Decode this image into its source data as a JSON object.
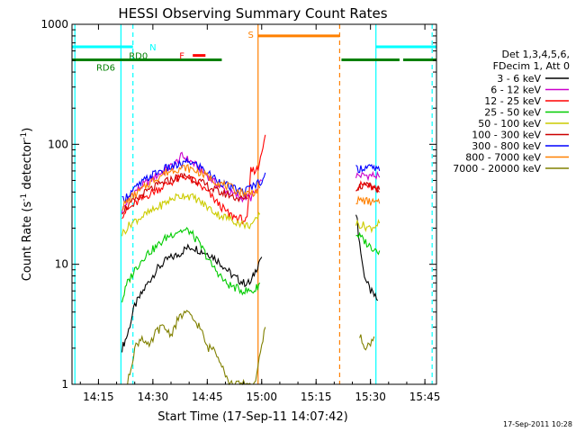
{
  "chart_data": {
    "type": "line",
    "title": "HESSI Observing Summary Count Rates",
    "xlabel": "Start Time (17-Sep-11 14:07:42)",
    "ylabel": "Count Rate (s⁻¹ detector⁻¹)",
    "ylabel_main": "Count Rate (s",
    "ylabel_sup1": "-1",
    "ylabel_mid": " detector",
    "ylabel_sup2": "-1",
    "ylabel_end": ")",
    "y_scale": "log",
    "ylim": [
      1,
      1000
    ],
    "xlim_minutes": [
      7.7,
      108.2
    ],
    "x_ticks": [
      {
        "label": "14:15",
        "min": 15
      },
      {
        "label": "14:30",
        "min": 30
      },
      {
        "label": "14:45",
        "min": 45
      },
      {
        "label": "15:00",
        "min": 60
      },
      {
        "label": "15:15",
        "min": 75
      },
      {
        "label": "15:30",
        "min": 90
      },
      {
        "label": "15:45",
        "min": 105
      }
    ],
    "y_ticks": [
      {
        "label": "1",
        "v": 1
      },
      {
        "label": "10",
        "v": 10
      },
      {
        "label": "100",
        "v": 100
      },
      {
        "label": "1000",
        "v": 1000
      }
    ],
    "legend_header": [
      "Det 1,3,4,5,6,",
      "FDecim 1, Att 0"
    ],
    "legend_position": "right",
    "series": [
      {
        "name": "3 - 6 keV",
        "color": "#000000",
        "points": [
          [
            21.5,
            2
          ],
          [
            23,
            2.6
          ],
          [
            25,
            4.5
          ],
          [
            28,
            6.5
          ],
          [
            31,
            9
          ],
          [
            34,
            11
          ],
          [
            37,
            12
          ],
          [
            39,
            13.5
          ],
          [
            41,
            14
          ],
          [
            43,
            13
          ],
          [
            46,
            12
          ],
          [
            49,
            10
          ],
          [
            52,
            8
          ],
          [
            55,
            7
          ],
          [
            57,
            7
          ],
          [
            59.5,
            11
          ],
          [
            60,
            11.5
          ]
        ],
        "points2": [
          [
            86,
            28
          ],
          [
            87,
            15
          ],
          [
            88,
            9
          ],
          [
            89,
            7
          ],
          [
            90,
            6
          ],
          [
            92,
            5
          ]
        ]
      },
      {
        "name": "6 - 12 keV",
        "color": "#cc00cc",
        "points": [
          [
            21.5,
            28
          ],
          [
            24,
            38
          ],
          [
            27,
            45
          ],
          [
            30,
            52
          ],
          [
            33,
            60
          ],
          [
            36,
            68
          ],
          [
            38,
            80
          ],
          [
            39.5,
            75
          ],
          [
            41,
            70
          ],
          [
            43,
            62
          ],
          [
            45,
            55
          ],
          [
            48,
            45
          ],
          [
            51,
            40
          ],
          [
            54,
            36
          ],
          [
            57,
            36
          ],
          [
            59,
            42
          ],
          [
            60,
            50
          ]
        ],
        "points2": [
          [
            86,
            55
          ],
          [
            88,
            55
          ],
          [
            91,
            55
          ],
          [
            92.5,
            53
          ]
        ]
      },
      {
        "name": "12 - 25 keV",
        "color": "#ff0000",
        "points": [
          [
            21.5,
            26
          ],
          [
            24,
            30
          ],
          [
            27,
            35
          ],
          [
            30,
            40
          ],
          [
            33,
            45
          ],
          [
            36,
            50
          ],
          [
            39,
            54
          ],
          [
            42,
            48
          ],
          [
            45,
            40
          ],
          [
            48,
            32
          ],
          [
            51,
            26
          ],
          [
            54,
            24
          ],
          [
            56,
            23
          ],
          [
            57,
            60
          ],
          [
            59,
            62
          ],
          [
            60,
            90
          ],
          [
            61,
            120
          ]
        ],
        "points2": [
          [
            86,
            44
          ],
          [
            88,
            46
          ],
          [
            90,
            44
          ],
          [
            92.5,
            40
          ]
        ]
      },
      {
        "name": "25 - 50 keV",
        "color": "#00cc00",
        "points": [
          [
            21.5,
            5
          ],
          [
            23,
            7
          ],
          [
            25,
            9
          ],
          [
            28,
            12
          ],
          [
            31,
            14
          ],
          [
            34,
            17
          ],
          [
            37,
            19
          ],
          [
            40,
            19
          ],
          [
            42,
            16
          ],
          [
            44,
            13
          ],
          [
            46,
            10
          ],
          [
            48,
            8.5
          ],
          [
            50,
            7
          ],
          [
            52,
            6.5
          ],
          [
            55,
            6
          ],
          [
            58,
            6
          ],
          [
            59.5,
            7
          ]
        ],
        "points2": [
          [
            86,
            18
          ],
          [
            88,
            16
          ],
          [
            90,
            14
          ],
          [
            92.5,
            13
          ]
        ]
      },
      {
        "name": "50 - 100 keV",
        "color": "#cccc00",
        "points": [
          [
            21.5,
            18
          ],
          [
            24,
            22
          ],
          [
            27,
            25
          ],
          [
            30,
            28
          ],
          [
            33,
            32
          ],
          [
            36,
            36
          ],
          [
            39,
            38
          ],
          [
            42,
            35
          ],
          [
            45,
            30
          ],
          [
            48,
            26
          ],
          [
            51,
            24
          ],
          [
            54,
            22
          ],
          [
            56,
            21
          ],
          [
            58,
            22
          ],
          [
            59.5,
            26
          ]
        ],
        "points2": [
          [
            86,
            22
          ],
          [
            88,
            21
          ],
          [
            90,
            20
          ],
          [
            92.5,
            22
          ]
        ]
      },
      {
        "name": "100 - 300 keV",
        "color": "#cc0000",
        "points": [
          [
            21.5,
            28
          ],
          [
            24,
            32
          ],
          [
            27,
            38
          ],
          [
            30,
            43
          ],
          [
            33,
            48
          ],
          [
            36,
            52
          ],
          [
            39,
            55
          ],
          [
            42,
            50
          ],
          [
            45,
            45
          ],
          [
            48,
            40
          ],
          [
            51,
            38
          ],
          [
            54,
            35
          ],
          [
            56,
            35
          ]
        ],
        "points2": [
          [
            86,
            44
          ],
          [
            88,
            45
          ],
          [
            90,
            44
          ],
          [
            92.5,
            42
          ]
        ]
      },
      {
        "name": "300 - 800 keV",
        "color": "#0000ff",
        "points": [
          [
            21.5,
            34
          ],
          [
            24,
            40
          ],
          [
            27,
            48
          ],
          [
            30,
            56
          ],
          [
            33,
            62
          ],
          [
            36,
            66
          ],
          [
            38,
            68
          ],
          [
            40,
            72
          ],
          [
            43,
            65
          ],
          [
            46,
            55
          ],
          [
            49,
            48
          ],
          [
            52,
            43
          ],
          [
            55,
            40
          ],
          [
            57,
            44
          ],
          [
            59,
            48
          ],
          [
            60,
            50
          ],
          [
            61,
            58
          ]
        ],
        "points2": [
          [
            86,
            62
          ],
          [
            88,
            64
          ],
          [
            90,
            64
          ],
          [
            92.5,
            60
          ]
        ]
      },
      {
        "name": "800 - 7000 keV",
        "color": "#ff8000",
        "points": [
          [
            21.5,
            30
          ],
          [
            24,
            36
          ],
          [
            27,
            42
          ],
          [
            30,
            50
          ],
          [
            33,
            57
          ],
          [
            36,
            62
          ],
          [
            39,
            64
          ],
          [
            42,
            60
          ],
          [
            45,
            54
          ],
          [
            48,
            48
          ],
          [
            51,
            44
          ],
          [
            54,
            40
          ],
          [
            56,
            39
          ],
          [
            58,
            40
          ],
          [
            59.5,
            43
          ]
        ],
        "points2": [
          [
            86,
            34
          ],
          [
            88,
            34
          ],
          [
            90,
            33
          ],
          [
            92.5,
            32
          ]
        ]
      },
      {
        "name": "7000 - 20000 keV",
        "color": "#808000",
        "points": [
          [
            23,
            1
          ],
          [
            25,
            2
          ],
          [
            27,
            2.5
          ],
          [
            29,
            2
          ],
          [
            31,
            2.8
          ],
          [
            33,
            3
          ],
          [
            35,
            2.6
          ],
          [
            37,
            3.5
          ],
          [
            39,
            4
          ],
          [
            41,
            3.5
          ],
          [
            43,
            3
          ],
          [
            45,
            2
          ],
          [
            47,
            2
          ],
          [
            49,
            1.5
          ],
          [
            51,
            1
          ],
          [
            56,
            1
          ],
          [
            58,
            1
          ],
          [
            60,
            2
          ],
          [
            61,
            3
          ]
        ],
        "points2": [
          [
            87,
            2.5
          ],
          [
            89,
            2
          ],
          [
            91,
            2.5
          ]
        ]
      }
    ],
    "annotations": [
      {
        "label": "N",
        "color": "#00ffff"
      },
      {
        "label": "RD0",
        "color": "#008000"
      },
      {
        "label": "RD6",
        "color": "#008000"
      },
      {
        "label": "F",
        "color": "#ff0000"
      },
      {
        "label": "S",
        "color": "#ff8000"
      }
    ],
    "bars": [
      {
        "name": "night-bar",
        "color": "#00ffff",
        "y": 650,
        "segments": [
          [
            7.7,
            24.5
          ],
          [
            91.5,
            108.2
          ]
        ]
      },
      {
        "name": "decimation-bar",
        "color": "#008000",
        "y": 505,
        "segments": [
          [
            7.7,
            49
          ],
          [
            82,
            98
          ],
          [
            99,
            108.2
          ]
        ]
      },
      {
        "name": "flare-bar",
        "color": "#ff0000",
        "y": 550,
        "segments": [
          [
            41,
            44.5
          ]
        ]
      },
      {
        "name": "saa-bar",
        "color": "#ff8000",
        "y": 800,
        "segments": [
          [
            59,
            81.5
          ]
        ]
      }
    ],
    "vlines": [
      {
        "min": 8.5,
        "color": "#00ffff",
        "dash": false
      },
      {
        "min": 24.5,
        "color": "#00ffff",
        "dash": true
      },
      {
        "min": 91.5,
        "color": "#00ffff",
        "dash": false
      },
      {
        "min": 107,
        "color": "#00ffff",
        "dash": true
      },
      {
        "min": 21.2,
        "color": "#00ffff",
        "dash": false
      },
      {
        "min": 59,
        "color": "#ff8000",
        "dash": false
      },
      {
        "min": 81.5,
        "color": "#ff8000",
        "dash": true
      }
    ],
    "footer_date": "17-Sep-2011 10:28"
  }
}
